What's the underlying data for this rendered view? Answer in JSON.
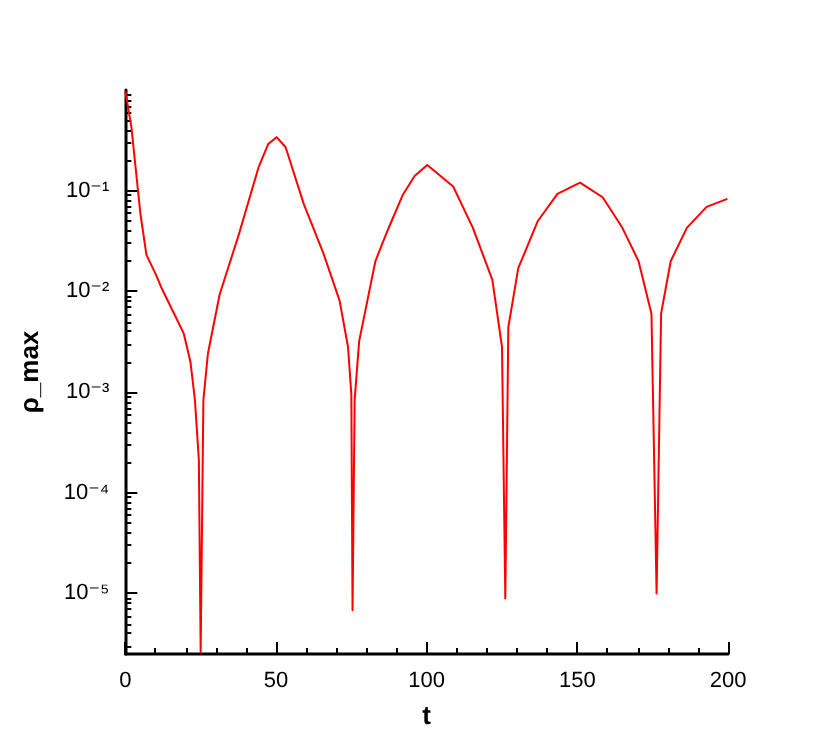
{
  "chart_data": {
    "type": "line",
    "xlabel": "t",
    "ylabel": "ρ_max",
    "log": "y",
    "grid": false,
    "marker": "none",
    "line_style": "solid",
    "xlim": [
      0,
      200
    ],
    "xticks": [
      0,
      50,
      100,
      150,
      200
    ],
    "ylim": [
      2.5e-06,
      1
    ],
    "yticks": [
      {
        "value": 1e-05,
        "label": "10⁻⁵"
      },
      {
        "value": 0.0001,
        "label": "10⁻⁴"
      },
      {
        "value": 0.001,
        "label": "10⁻³"
      },
      {
        "value": 0.01,
        "label": "10⁻²"
      },
      {
        "value": 0.1,
        "label": "10⁻¹"
      }
    ],
    "series": [
      {
        "color": "#ff0000",
        "x": [
          0,
          2,
          5,
          7,
          10,
          11.9,
          16.2,
          19.4,
          21.6,
          23.1,
          24.4,
          25,
          25.9,
          27.4,
          31.3,
          37.7,
          44.2,
          47.4,
          50.2,
          53.2,
          59.2,
          65.7,
          71.1,
          73.9,
          75,
          75.4,
          76.1,
          77.6,
          83,
          87,
          92,
          96,
          100.2,
          108.8,
          115.3,
          121.8,
          125,
          126.1,
          127.1,
          130.4,
          136.9,
          143.4,
          150.9,
          158.4,
          164.9,
          170.3,
          174.6,
          176.3,
          177.8,
          181,
          186.4,
          192.9,
          199.8
        ],
        "values": [
          0.97,
          0.43,
          0.059,
          0.023,
          0.015,
          0.011,
          0.006,
          0.0038,
          0.002,
          0.00083,
          0.00021,
          2.6e-06,
          0.00083,
          0.0024,
          0.0093,
          0.037,
          0.17,
          0.29,
          0.34,
          0.27,
          0.074,
          0.024,
          0.0081,
          0.0028,
          0.00095,
          6.8e-06,
          0.00083,
          0.0032,
          0.02,
          0.04,
          0.09,
          0.14,
          0.18,
          0.11,
          0.043,
          0.013,
          0.0028,
          8.9e-06,
          0.0044,
          0.017,
          0.05,
          0.093,
          0.12,
          0.086,
          0.043,
          0.02,
          0.006,
          1e-05,
          0.006,
          0.02,
          0.043,
          0.069,
          0.083
        ]
      }
    ]
  }
}
